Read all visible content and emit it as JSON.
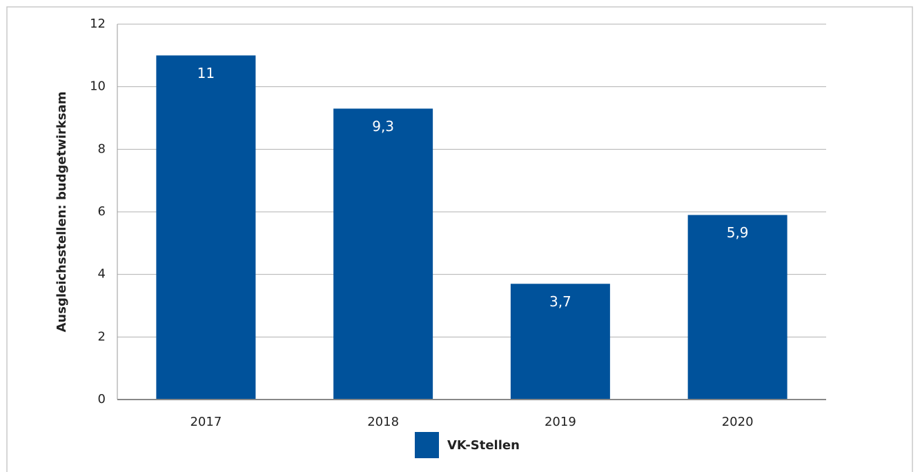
{
  "chart_data": {
    "type": "bar",
    "y_label": "Ausgleichsstellen: budgetwirksam",
    "categories": [
      "2017",
      "2018",
      "2019",
      "2020"
    ],
    "series": [
      {
        "name": "VK-Stellen",
        "color": "#00529b",
        "values": [
          11,
          9.3,
          3.7,
          5.9
        ],
        "value_labels": [
          "11",
          "9,3",
          "3,7",
          "5,9"
        ]
      }
    ],
    "ylim": [
      0,
      12
    ],
    "yticks": [
      0,
      2,
      4,
      6,
      8,
      10,
      12
    ],
    "grid": true,
    "legend": "bottom"
  }
}
